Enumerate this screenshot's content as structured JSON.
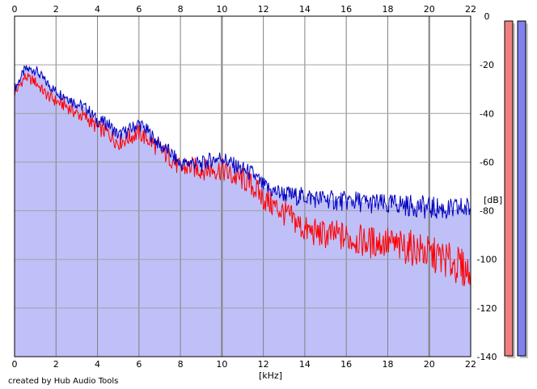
{
  "credit": "created by Hub Audio Tools",
  "chart_data": {
    "type": "area",
    "xlabel": "[kHz]",
    "ylabel": "[dB]",
    "xlim": [
      0,
      22
    ],
    "ylim": [
      -140,
      0
    ],
    "x_ticks": [
      "0",
      "2",
      "4",
      "6",
      "8",
      "10",
      "12",
      "14",
      "16",
      "18",
      "20",
      "22"
    ],
    "y_ticks": [
      "0",
      "-20",
      "-40",
      "-60",
      "-80",
      "-100",
      "-120",
      "-140"
    ],
    "grid": true,
    "fill_color": "#c0c0f8",
    "series": [
      {
        "color": "#0000c0",
        "x": [
          0.0,
          0.5,
          1.0,
          1.5,
          2.0,
          2.5,
          3.0,
          3.5,
          4.0,
          4.5,
          5.0,
          5.5,
          6.0,
          6.5,
          7.0,
          7.5,
          8.0,
          8.5,
          9.0,
          9.5,
          10.0,
          10.5,
          11.0,
          11.5,
          12.0,
          12.5,
          13.0,
          13.5,
          14.0,
          14.5,
          15.0,
          15.5,
          16.0,
          16.5,
          17.0,
          17.5,
          18.0,
          18.5,
          19.0,
          19.5,
          20.0,
          20.5,
          21.0,
          21.5,
          22.0
        ],
        "y": [
          -30,
          -22,
          -22,
          -27,
          -31,
          -33,
          -36,
          -38,
          -43,
          -44,
          -49,
          -47,
          -44,
          -48,
          -53,
          -56,
          -61,
          -60,
          -61,
          -59,
          -58,
          -61,
          -63,
          -65,
          -70,
          -72,
          -73,
          -74,
          -74,
          -75,
          -75,
          -76,
          -76,
          -76,
          -77,
          -77,
          -78,
          -77,
          -78,
          -78,
          -79,
          -79,
          -80,
          -79,
          -79
        ]
      },
      {
        "color": "#ff0000",
        "x": [
          0.0,
          0.5,
          1.0,
          1.5,
          2.0,
          2.5,
          3.0,
          3.5,
          4.0,
          4.5,
          5.0,
          5.5,
          6.0,
          6.5,
          7.0,
          7.5,
          8.0,
          8.5,
          9.0,
          9.5,
          10.0,
          10.5,
          11.0,
          11.5,
          12.0,
          12.5,
          13.0,
          13.5,
          14.0,
          14.5,
          15.0,
          15.5,
          16.0,
          16.5,
          17.0,
          17.5,
          18.0,
          18.5,
          19.0,
          19.5,
          20.0,
          20.5,
          21.0,
          21.5,
          22.0
        ],
        "y": [
          -32,
          -25,
          -27,
          -32,
          -35,
          -37,
          -40,
          -42,
          -46,
          -48,
          -52,
          -50,
          -48,
          -51,
          -55,
          -58,
          -63,
          -62,
          -63,
          -63,
          -63,
          -66,
          -67,
          -70,
          -75,
          -78,
          -81,
          -84,
          -88,
          -89,
          -90,
          -90,
          -91,
          -92,
          -93,
          -93,
          -93,
          -95,
          -95,
          -96,
          -98,
          -99,
          -101,
          -103,
          -106
        ]
      }
    ],
    "meters": [
      {
        "color": "#f08080",
        "value": 1.0
      },
      {
        "color": "#8080f0",
        "value": 1.0
      }
    ]
  }
}
